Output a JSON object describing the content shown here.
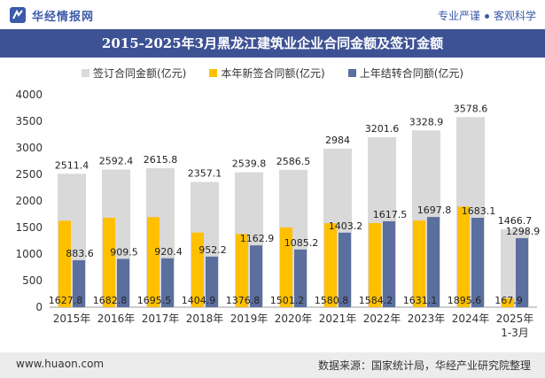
{
  "header": {
    "site_name": "华经情报网",
    "slogan_left": "专业严谨",
    "slogan_right": "客观科学"
  },
  "footer": {
    "website": "www.huaon.com",
    "source": "数据来源：国家统计局，华经产业研究院整理"
  },
  "colors": {
    "total": "#d9d9d9",
    "new": "#ffc000",
    "carry": "#5b6f9e",
    "title_bg": "#3d5294"
  },
  "chart_data": {
    "type": "bar",
    "title": "2015-2025年3月黑龙江建筑业企业合同金额及签订金额",
    "categories": [
      "2015年",
      "2016年",
      "2017年",
      "2018年",
      "2019年",
      "2020年",
      "2021年",
      "2022年",
      "2023年",
      "2024年",
      "2025年1-3月"
    ],
    "series": [
      {
        "name": "签订合同金额(亿元)",
        "values": [
          2511.4,
          2592.4,
          2615.8,
          2357.1,
          2539.8,
          2586.5,
          2984,
          3201.6,
          3328.9,
          3578.6,
          1466.7
        ]
      },
      {
        "name": "本年新签合同额(亿元)",
        "values": [
          1627.8,
          1682.8,
          1695.5,
          1404.9,
          1376.8,
          1501.2,
          1580.8,
          1584.2,
          1631.1,
          1895.6,
          167.9
        ]
      },
      {
        "name": "上年结转合同额(亿元)",
        "values": [
          883.6,
          909.5,
          920.4,
          952.2,
          1162.9,
          1085.2,
          1403.2,
          1617.5,
          1697.8,
          1683.1,
          1298.9
        ]
      }
    ],
    "ylim": [
      0,
      4000
    ],
    "yticks": [
      0,
      500,
      1000,
      1500,
      2000,
      2500,
      3000,
      3500,
      4000
    ],
    "xlabel": "",
    "ylabel": "",
    "legend_position": "top"
  }
}
